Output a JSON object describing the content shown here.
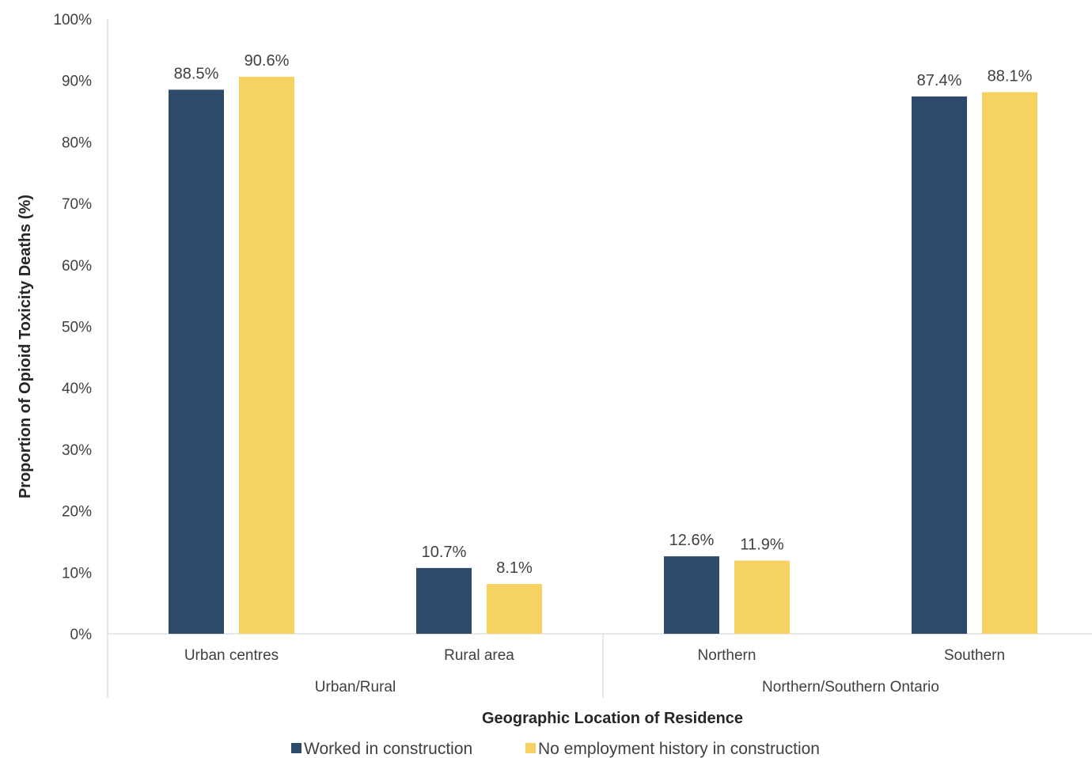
{
  "chart_data": {
    "type": "bar",
    "title": "",
    "xlabel": "Geographic Location of Residence",
    "ylabel": "Proportion of Opioid Toxicity Deaths (%)",
    "ylim": [
      0,
      100
    ],
    "yticks": [
      "0%",
      "10%",
      "20%",
      "30%",
      "40%",
      "50%",
      "60%",
      "70%",
      "80%",
      "90%",
      "100%"
    ],
    "grid": false,
    "legend": "bottom",
    "categories": [
      "Urban centres",
      "Rural area",
      "Northern",
      "Southern"
    ],
    "groups": [
      {
        "label": "Urban/Rural",
        "categories": [
          "Urban centres",
          "Rural area"
        ]
      },
      {
        "label": "Northern/Southern Ontario",
        "categories": [
          "Northern",
          "Southern"
        ]
      }
    ],
    "series": [
      {
        "name": "Worked in construction",
        "color": "#2d4a6b",
        "values": [
          88.5,
          10.7,
          12.6,
          87.4
        ],
        "labels": [
          "88.5%",
          "10.7%",
          "12.6%",
          "87.4%"
        ]
      },
      {
        "name": "No employment history in construction",
        "color": "#f6d262",
        "values": [
          90.6,
          8.1,
          11.9,
          88.1
        ],
        "labels": [
          "90.6%",
          "8.1%",
          "11.9%",
          "88.1%"
        ]
      }
    ]
  }
}
